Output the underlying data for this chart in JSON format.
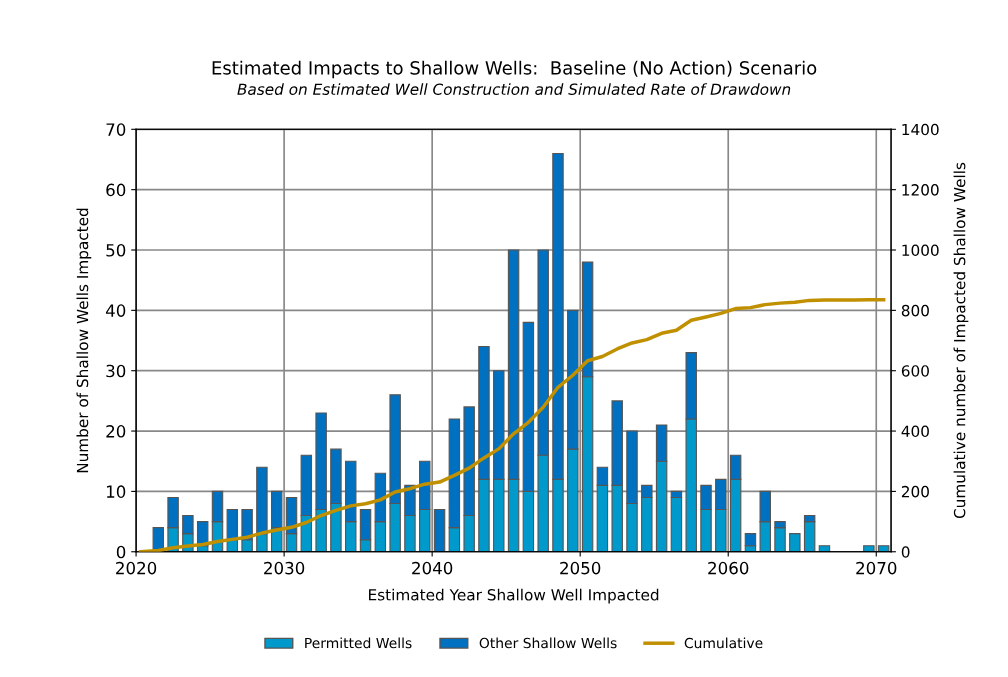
{
  "chart_data": {
    "type": "bar",
    "stacked": true,
    "title": "Estimated Impacts to Shallow Wells:  Baseline (No Action) Scenario",
    "subtitle": "Based on Estimated Well Construction and Simulated Rate of Drawdown",
    "xlabel": "Estimated Year Shallow Well Impacted",
    "ylabel": "Number of Shallow Wells Impacted",
    "y2label": "Cumulative number of Impacted Shallow Wells",
    "x": [
      2021.5,
      2022.5,
      2023.5,
      2024.5,
      2025.5,
      2026.5,
      2027.5,
      2028.5,
      2029.5,
      2030.5,
      2031.5,
      2032.5,
      2033.5,
      2034.5,
      2035.5,
      2036.5,
      2037.5,
      2038.5,
      2039.5,
      2040.5,
      2041.5,
      2042.5,
      2043.5,
      2044.5,
      2045.5,
      2046.5,
      2047.5,
      2048.5,
      2049.5,
      2050.5,
      2051.5,
      2052.5,
      2053.5,
      2054.5,
      2055.5,
      2056.5,
      2057.5,
      2058.5,
      2059.5,
      2060.5,
      2061.5,
      2062.5,
      2063.5,
      2064.5,
      2065.5,
      2066.5,
      2067.5,
      2068.5,
      2069.5,
      2070.5
    ],
    "series": [
      {
        "name": "Permitted Wells",
        "color": "#0099cc",
        "values": [
          0,
          4,
          3,
          1,
          5,
          2,
          2,
          3,
          4,
          3,
          6,
          7,
          8,
          5,
          2,
          5,
          8,
          6,
          7,
          0,
          4,
          6,
          12,
          12,
          12,
          10,
          16,
          12,
          17,
          29,
          11,
          11,
          8,
          9,
          15,
          9,
          22,
          7,
          7,
          12,
          1,
          5,
          4,
          3,
          5,
          1,
          0,
          0,
          1,
          1
        ]
      },
      {
        "name": "Other Shallow Wells",
        "color": "#0070c0",
        "values": [
          4,
          5,
          3,
          4,
          5,
          5,
          5,
          11,
          6,
          6,
          10,
          16,
          9,
          10,
          5,
          8,
          18,
          5,
          8,
          7,
          18,
          18,
          22,
          18,
          38,
          28,
          34,
          54,
          23,
          19,
          3,
          14,
          12,
          2,
          6,
          1,
          11,
          4,
          5,
          4,
          2,
          5,
          1,
          0,
          1,
          0,
          0,
          0,
          0,
          0
        ]
      },
      {
        "name": "Cumulative",
        "type": "line",
        "axis": "y2",
        "color": "#c09000",
        "x": [
          2020.3,
          2021.5,
          2022.5,
          2023.5,
          2024.5,
          2025.5,
          2026.5,
          2027.5,
          2028.5,
          2029.5,
          2030.5,
          2031.5,
          2032.5,
          2033.5,
          2034.5,
          2035.5,
          2036.5,
          2037.5,
          2038.5,
          2039.5,
          2040.5,
          2041.5,
          2042.5,
          2043.5,
          2044.5,
          2045.5,
          2046.5,
          2047.5,
          2048.5,
          2049.5,
          2050.5,
          2051.5,
          2052.5,
          2053.5,
          2054.5,
          2055.5,
          2056.5,
          2057.5,
          2058.5,
          2059.5,
          2060.5,
          2061.5,
          2062.5,
          2063.5,
          2064.5,
          2065.5,
          2066.5,
          2067.5,
          2068.5,
          2069.5,
          2070.5
        ],
        "values": [
          0,
          4,
          13,
          19,
          24,
          34,
          41,
          48,
          62,
          72,
          81,
          97,
          120,
          137,
          152,
          159,
          172,
          198,
          209,
          224,
          231,
          253,
          277,
          311,
          341,
          391,
          429,
          479,
          545,
          585,
          633,
          647,
          672,
          692,
          703,
          724,
          734,
          767,
          778,
          790,
          806,
          809,
          819,
          824,
          827,
          833,
          834,
          834,
          834,
          835,
          835
        ]
      }
    ],
    "xlim": [
      2020,
      2071
    ],
    "xticks": [
      2020,
      2030,
      2040,
      2050,
      2060,
      2070
    ],
    "ylim": [
      0,
      70
    ],
    "yticks": [
      0,
      10,
      20,
      30,
      40,
      50,
      60,
      70
    ],
    "y2lim": [
      0,
      1400
    ],
    "y2ticks": [
      0,
      200,
      400,
      600,
      800,
      1000,
      1200,
      1400
    ],
    "grid": true,
    "legend": "bottom",
    "marker": "none",
    "line_style": "solid"
  }
}
